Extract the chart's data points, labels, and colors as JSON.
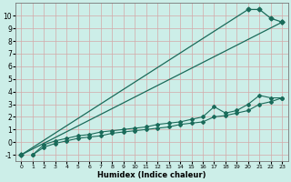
{
  "xlabel": "Humidex (Indice chaleur)",
  "ylabel": "",
  "xlim": [
    -0.5,
    23.5
  ],
  "ylim": [
    -1.5,
    11.0
  ],
  "yticks": [
    -1,
    0,
    1,
    2,
    3,
    4,
    5,
    6,
    7,
    8,
    9,
    10
  ],
  "xticks": [
    0,
    1,
    2,
    3,
    4,
    5,
    6,
    7,
    8,
    9,
    10,
    11,
    12,
    13,
    14,
    15,
    16,
    17,
    18,
    19,
    20,
    21,
    22,
    23
  ],
  "bg_color": "#cceee8",
  "line_color": "#1a6b5a",
  "grid_color": "#d4a8a8",
  "line1_x": [
    0,
    23
  ],
  "line1_y": [
    -1.0,
    9.5
  ],
  "line2_x": [
    0,
    20,
    21,
    22,
    23
  ],
  "line2_y": [
    -1.0,
    10.5,
    10.5,
    9.8,
    9.5
  ],
  "line3_x": [
    1,
    2,
    3,
    4,
    5,
    6,
    7,
    8,
    9,
    10,
    11,
    12,
    13,
    14,
    15,
    16,
    17,
    18,
    19,
    20,
    21,
    22,
    23
  ],
  "line3_y": [
    -1.0,
    -0.2,
    0.1,
    0.3,
    0.5,
    0.6,
    0.8,
    0.9,
    1.0,
    1.1,
    1.2,
    1.4,
    1.5,
    1.6,
    1.8,
    2.0,
    2.8,
    2.3,
    2.5,
    3.0,
    3.7,
    3.5,
    3.5
  ],
  "line4_x": [
    1,
    2,
    3,
    4,
    5,
    6,
    7,
    8,
    9,
    10,
    11,
    12,
    13,
    14,
    15,
    16,
    17,
    18,
    19,
    20,
    21,
    22,
    23
  ],
  "line4_y": [
    -1.0,
    -0.4,
    -0.1,
    0.1,
    0.3,
    0.4,
    0.5,
    0.7,
    0.8,
    0.9,
    1.0,
    1.1,
    1.2,
    1.4,
    1.5,
    1.6,
    2.0,
    2.1,
    2.3,
    2.5,
    3.0,
    3.2,
    3.5
  ]
}
